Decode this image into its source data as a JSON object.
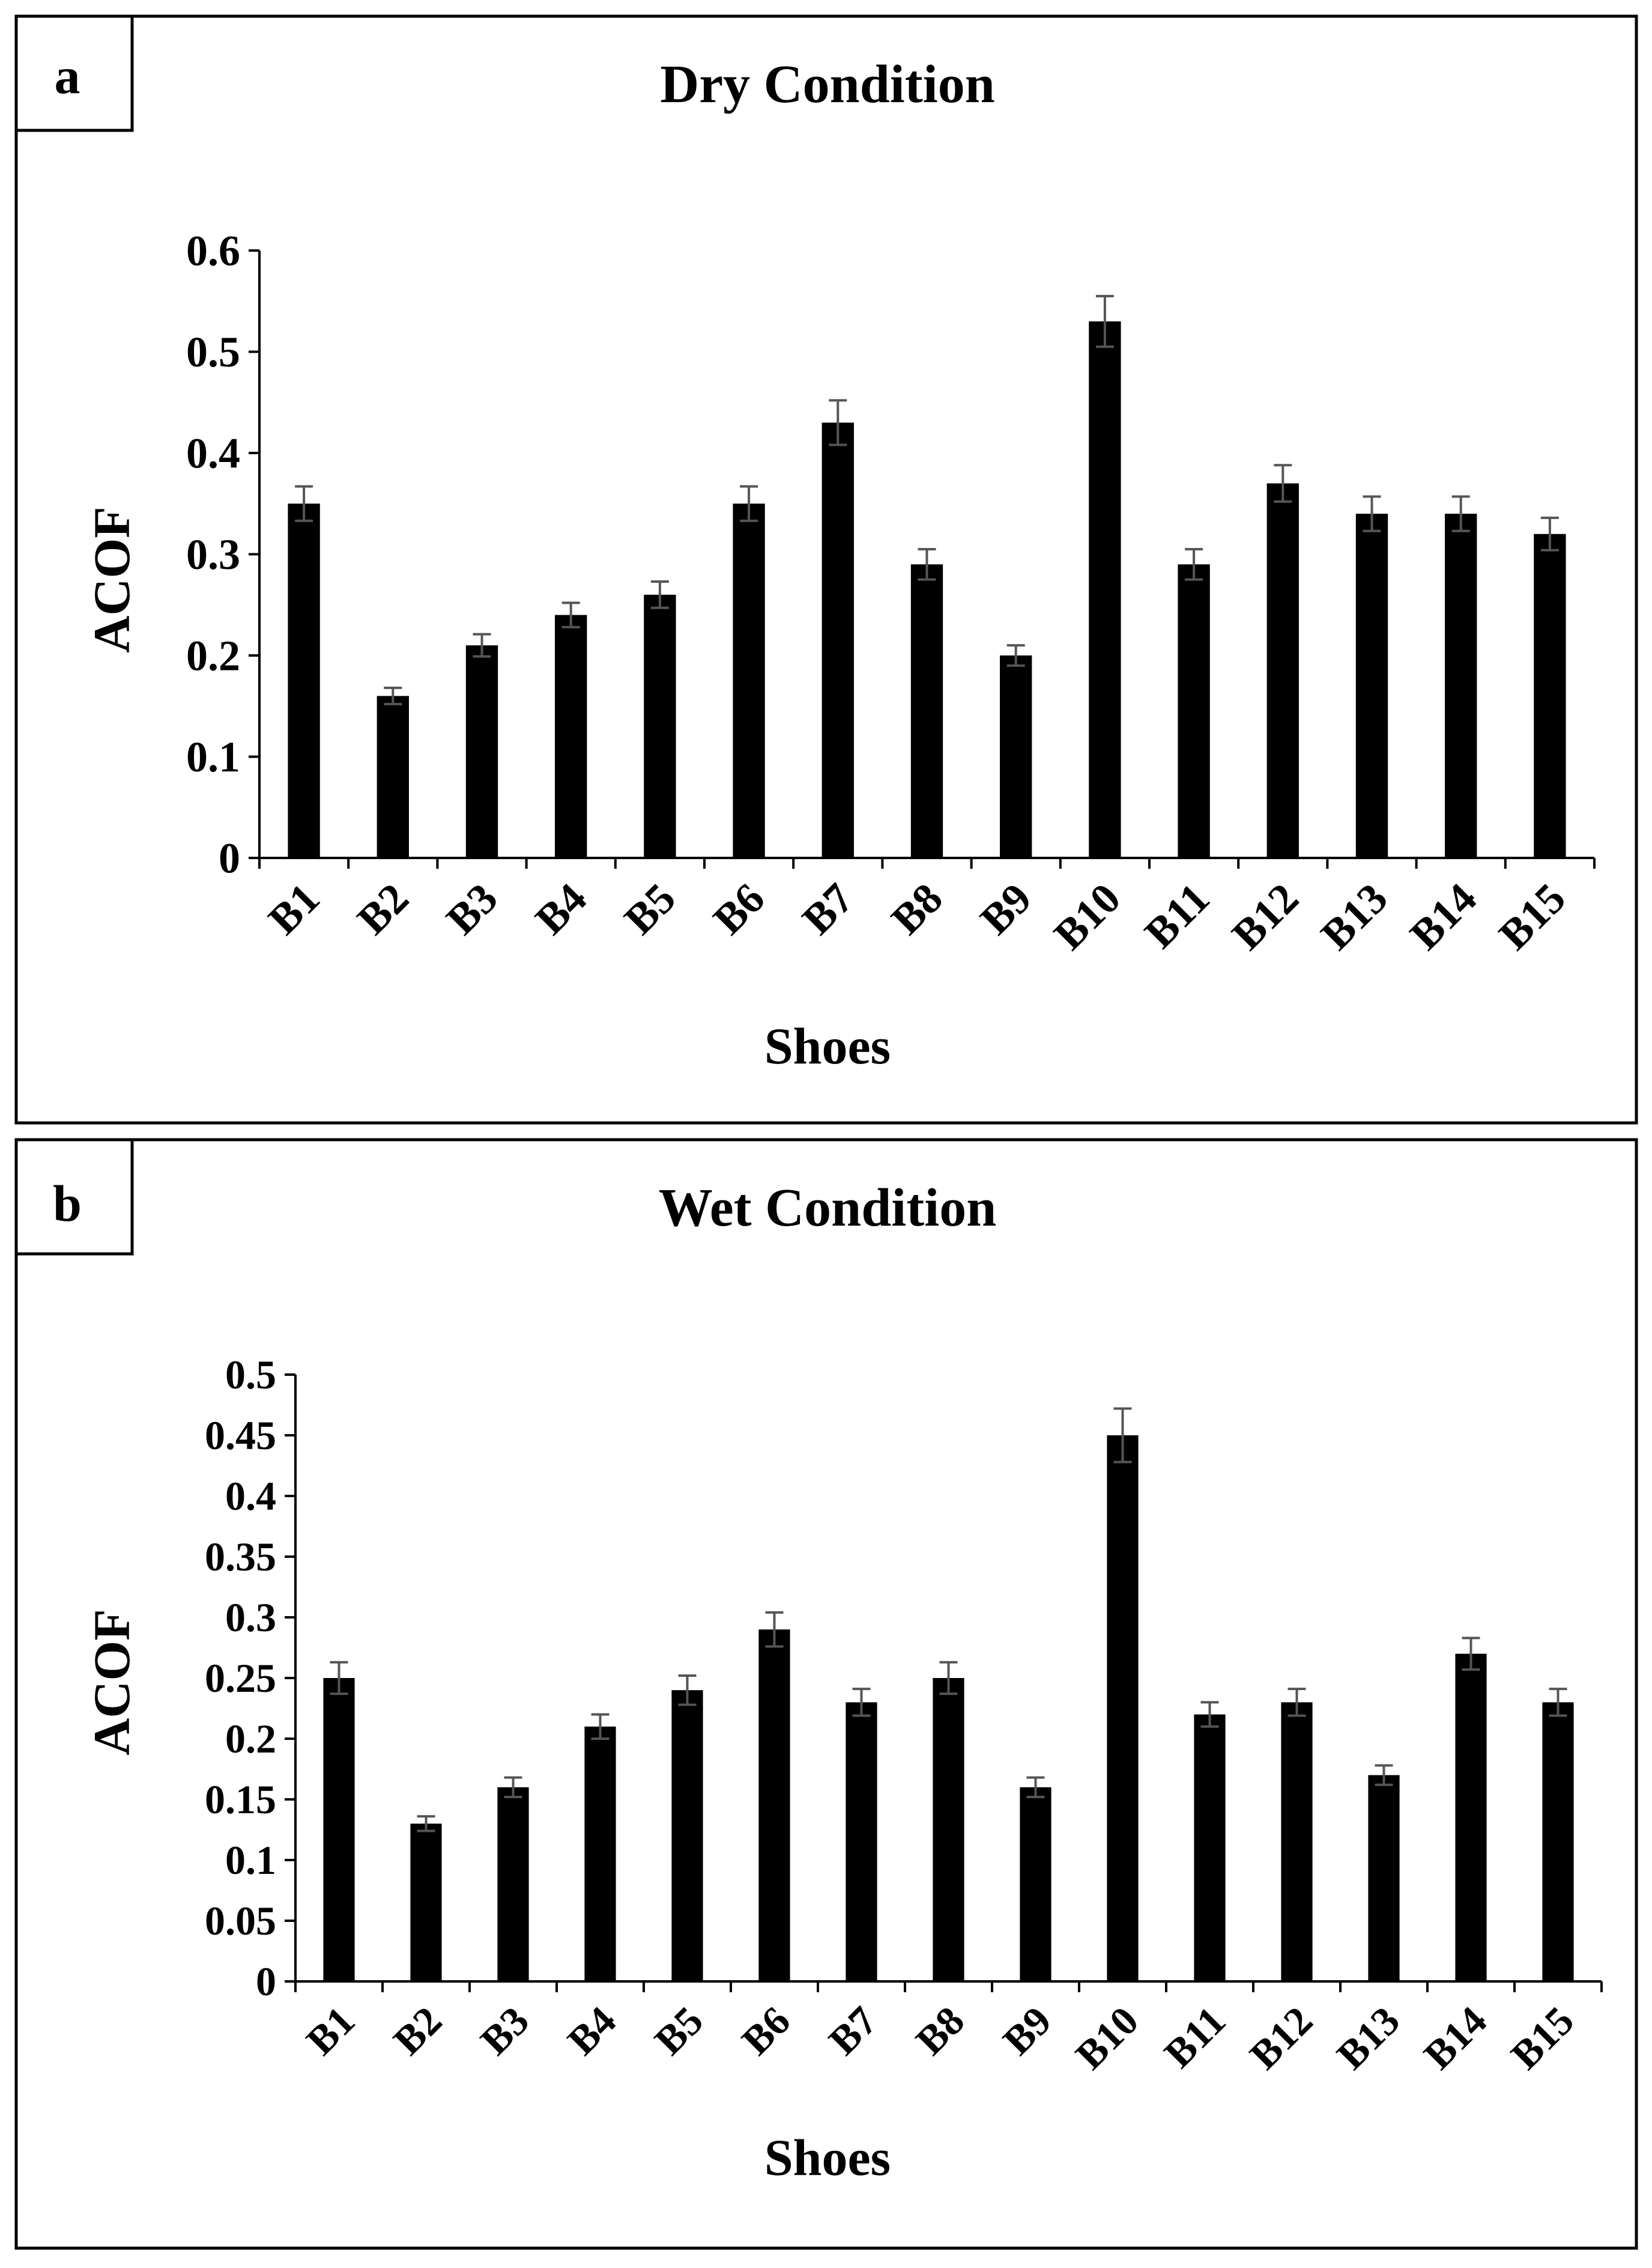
{
  "chart_data": [
    {
      "panel_label": "a",
      "type": "bar",
      "title": "Dry Condition",
      "xlabel": "Shoes",
      "ylabel": "ACOF",
      "ylim": [
        0,
        0.6
      ],
      "yticks": [
        "0",
        "0.1",
        "0.2",
        "0.3",
        "0.4",
        "0.5",
        "0.6"
      ],
      "categories": [
        "B1",
        "B2",
        "B3",
        "B4",
        "B5",
        "B6",
        "B7",
        "B8",
        "B9",
        "B10",
        "B11",
        "B12",
        "B13",
        "B14",
        "B15"
      ],
      "values": [
        0.35,
        0.16,
        0.21,
        0.24,
        0.26,
        0.35,
        0.43,
        0.29,
        0.2,
        0.53,
        0.29,
        0.37,
        0.34,
        0.34,
        0.32
      ],
      "errors": [
        0.017,
        0.008,
        0.011,
        0.012,
        0.013,
        0.017,
        0.022,
        0.015,
        0.01,
        0.025,
        0.015,
        0.018,
        0.017,
        0.017,
        0.016
      ],
      "bar_color": "#000000",
      "error_color": "#555555"
    },
    {
      "panel_label": "b",
      "type": "bar",
      "title": "Wet Condition",
      "xlabel": "Shoes",
      "ylabel": "ACOF",
      "ylim": [
        0,
        0.5
      ],
      "yticks": [
        "0",
        "0.05",
        "0.1",
        "0.15",
        "0.2",
        "0.25",
        "0.3",
        "0.35",
        "0.4",
        "0.45",
        "0.5"
      ],
      "categories": [
        "B1",
        "B2",
        "B3",
        "B4",
        "B5",
        "B6",
        "B7",
        "B8",
        "B9",
        "B10",
        "B11",
        "B12",
        "B13",
        "B14",
        "B15"
      ],
      "values": [
        0.25,
        0.13,
        0.16,
        0.21,
        0.24,
        0.29,
        0.23,
        0.25,
        0.16,
        0.45,
        0.22,
        0.23,
        0.17,
        0.27,
        0.23
      ],
      "errors": [
        0.013,
        0.006,
        0.008,
        0.01,
        0.012,
        0.014,
        0.011,
        0.013,
        0.008,
        0.022,
        0.01,
        0.011,
        0.008,
        0.013,
        0.011
      ],
      "bar_color": "#000000",
      "error_color": "#555555"
    }
  ]
}
